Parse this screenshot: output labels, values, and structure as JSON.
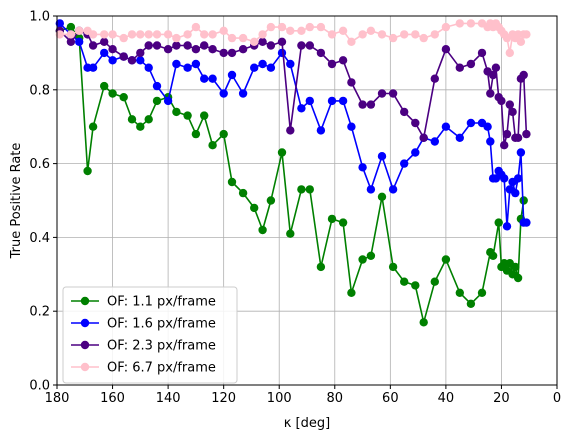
{
  "chart_data": {
    "type": "line",
    "title": "",
    "xlabel": "κ [deg]",
    "ylabel": "True Positive Rate",
    "xlim": [
      180,
      0
    ],
    "ylim": [
      0.0,
      1.0
    ],
    "xticks": [
      180,
      160,
      140,
      120,
      100,
      80,
      60,
      40,
      20,
      0
    ],
    "yticks": [
      0.0,
      0.2,
      0.4,
      0.6,
      0.8,
      1.0
    ],
    "xtick_labels": [
      "180",
      "160",
      "140",
      "120",
      "100",
      "80",
      "60",
      "40",
      "20",
      "0"
    ],
    "ytick_labels": [
      "0.0",
      "0.2",
      "0.4",
      "0.6",
      "0.8",
      "1.0"
    ],
    "grid": true,
    "legend_position": "lower-left",
    "series": [
      {
        "name": "OF: 1.1 px/frame",
        "color": "#008000",
        "x": [
          179,
          175,
          172,
          169,
          167,
          163,
          160,
          156,
          153,
          150,
          147,
          144,
          140,
          137,
          133,
          130,
          127,
          124,
          120,
          117,
          113,
          109,
          106,
          103,
          99,
          96,
          92,
          89,
          85,
          81,
          77,
          74,
          70,
          67,
          63,
          59,
          55,
          51,
          48,
          44,
          40,
          35,
          31,
          27,
          24,
          23,
          21,
          20,
          19,
          18,
          17,
          16,
          15,
          14,
          13,
          12
        ],
        "y": [
          0.96,
          0.97,
          0.94,
          0.58,
          0.7,
          0.81,
          0.79,
          0.78,
          0.72,
          0.7,
          0.72,
          0.77,
          0.78,
          0.74,
          0.73,
          0.68,
          0.73,
          0.65,
          0.68,
          0.55,
          0.52,
          0.48,
          0.42,
          0.5,
          0.63,
          0.41,
          0.53,
          0.53,
          0.32,
          0.45,
          0.44,
          0.25,
          0.34,
          0.35,
          0.51,
          0.32,
          0.28,
          0.27,
          0.17,
          0.28,
          0.34,
          0.25,
          0.22,
          0.25,
          0.36,
          0.35,
          0.44,
          0.32,
          0.33,
          0.31,
          0.33,
          0.3,
          0.32,
          0.29,
          0.45,
          0.5
        ]
      },
      {
        "name": "OF: 1.6 px/frame",
        "color": "#0000ff",
        "x": [
          179,
          175,
          172,
          169,
          167,
          163,
          160,
          156,
          153,
          150,
          147,
          144,
          140,
          137,
          133,
          130,
          127,
          124,
          120,
          117,
          113,
          109,
          106,
          103,
          99,
          96,
          92,
          89,
          85,
          81,
          77,
          74,
          70,
          67,
          63,
          59,
          55,
          51,
          48,
          44,
          40,
          35,
          31,
          27,
          25,
          24,
          23,
          22,
          21,
          20,
          19,
          18,
          17,
          16,
          15,
          14,
          13,
          12,
          11
        ],
        "y": [
          0.98,
          0.95,
          0.93,
          0.86,
          0.86,
          0.9,
          0.88,
          0.89,
          0.88,
          0.88,
          0.86,
          0.81,
          0.77,
          0.87,
          0.86,
          0.87,
          0.83,
          0.83,
          0.79,
          0.84,
          0.79,
          0.86,
          0.87,
          0.86,
          0.9,
          0.87,
          0.75,
          0.77,
          0.69,
          0.77,
          0.77,
          0.7,
          0.59,
          0.53,
          0.62,
          0.53,
          0.6,
          0.63,
          0.67,
          0.66,
          0.7,
          0.67,
          0.71,
          0.71,
          0.7,
          0.66,
          0.56,
          0.56,
          0.58,
          0.57,
          0.56,
          0.43,
          0.53,
          0.55,
          0.52,
          0.56,
          0.63,
          0.44,
          0.44
        ]
      },
      {
        "name": "OF: 2.3 px/frame",
        "color": "#4b0082",
        "x": [
          179,
          175,
          172,
          169,
          167,
          163,
          160,
          156,
          153,
          150,
          147,
          144,
          140,
          137,
          133,
          130,
          127,
          124,
          120,
          117,
          113,
          109,
          106,
          103,
          99,
          96,
          92,
          89,
          85,
          81,
          77,
          74,
          70,
          67,
          63,
          59,
          55,
          51,
          48,
          44,
          40,
          35,
          31,
          27,
          25,
          24,
          23,
          22,
          21,
          20,
          19,
          18,
          17,
          16,
          15,
          14,
          13,
          12,
          11
        ],
        "y": [
          0.96,
          0.93,
          0.96,
          0.95,
          0.92,
          0.93,
          0.91,
          0.89,
          0.88,
          0.9,
          0.92,
          0.92,
          0.91,
          0.92,
          0.92,
          0.91,
          0.92,
          0.91,
          0.9,
          0.9,
          0.91,
          0.92,
          0.93,
          0.92,
          0.93,
          0.69,
          0.92,
          0.92,
          0.9,
          0.87,
          0.88,
          0.82,
          0.76,
          0.76,
          0.79,
          0.79,
          0.74,
          0.71,
          0.67,
          0.83,
          0.91,
          0.86,
          0.87,
          0.9,
          0.85,
          0.79,
          0.84,
          0.86,
          0.78,
          0.77,
          0.65,
          0.68,
          0.76,
          0.74,
          0.67,
          0.67,
          0.83,
          0.84,
          0.68
        ]
      },
      {
        "name": "OF: 6.7 px/frame",
        "color": "#ffc0cb",
        "x": [
          179,
          175,
          172,
          169,
          167,
          163,
          160,
          156,
          153,
          150,
          147,
          144,
          140,
          137,
          133,
          130,
          127,
          124,
          120,
          117,
          113,
          109,
          106,
          103,
          99,
          96,
          92,
          89,
          85,
          81,
          77,
          74,
          70,
          67,
          63,
          59,
          55,
          51,
          48,
          44,
          40,
          35,
          31,
          27,
          25,
          24,
          23,
          22,
          21,
          20,
          19,
          18,
          17,
          16,
          15,
          14,
          13,
          12,
          11
        ],
        "y": [
          0.95,
          0.95,
          0.96,
          0.96,
          0.95,
          0.95,
          0.95,
          0.94,
          0.95,
          0.95,
          0.95,
          0.95,
          0.95,
          0.94,
          0.95,
          0.97,
          0.95,
          0.95,
          0.96,
          0.94,
          0.94,
          0.93,
          0.95,
          0.97,
          0.97,
          0.96,
          0.96,
          0.97,
          0.97,
          0.95,
          0.96,
          0.93,
          0.95,
          0.96,
          0.95,
          0.94,
          0.95,
          0.95,
          0.94,
          0.95,
          0.97,
          0.98,
          0.98,
          0.98,
          0.97,
          0.98,
          0.97,
          0.98,
          0.97,
          0.96,
          0.95,
          0.94,
          0.9,
          0.95,
          0.94,
          0.95,
          0.93,
          0.95,
          0.95
        ]
      }
    ]
  }
}
